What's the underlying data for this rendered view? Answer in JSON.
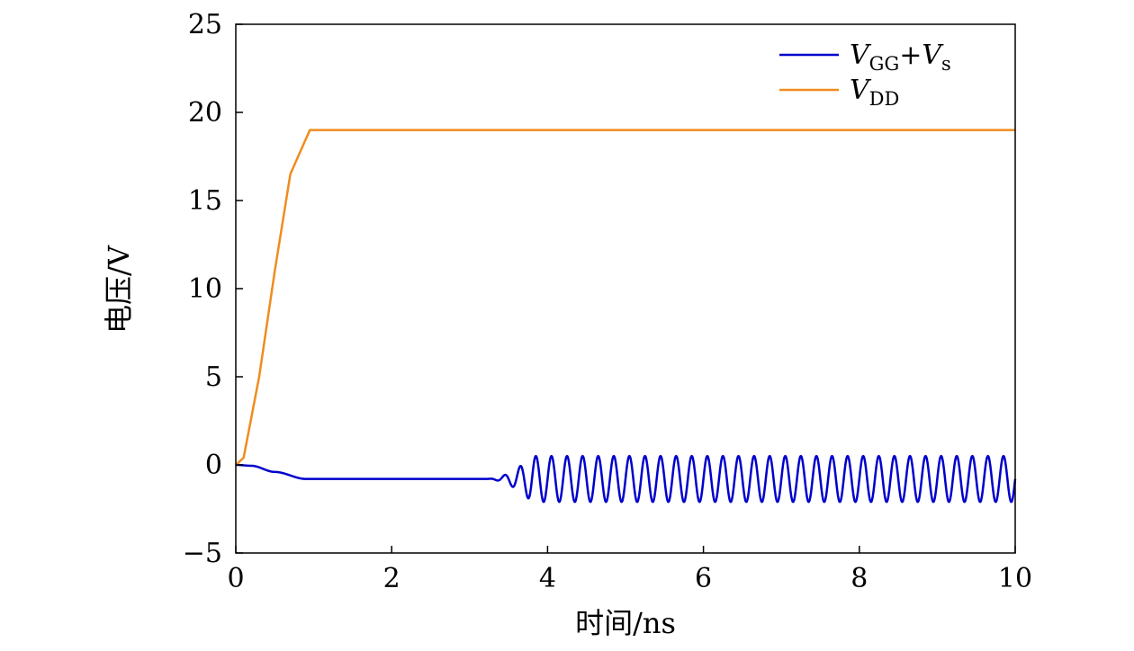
{
  "chart_data": {
    "type": "line",
    "title": "",
    "xlabel": "时间/ns",
    "ylabel": "电压/V",
    "xlim": [
      0,
      10
    ],
    "ylim": [
      -5,
      25
    ],
    "xticks": [
      0,
      2,
      4,
      6,
      8,
      10
    ],
    "yticks": [
      -5,
      0,
      5,
      10,
      15,
      20,
      25
    ],
    "ytick_labels": [
      "−5",
      "0",
      "5",
      "10",
      "15",
      "20",
      "25"
    ],
    "grid": false,
    "legend_position": "top-right",
    "series": [
      {
        "name": "VGG+Vs",
        "legend": {
          "main": "V",
          "sub1": "GG",
          "plus": "+",
          "main2": "V",
          "sub2": "s"
        },
        "color": "#0000cc",
        "description": "starts at 0 V, dips to about -0.8 V by 1 ns, flat until about 3.2 ns, then oscillates with growing amplitude settling between about -2.1 V and 0.5 V with period about 0.2 ns",
        "key_points": [
          [
            0,
            0
          ],
          [
            0.2,
            -0.05
          ],
          [
            0.5,
            -0.4
          ],
          [
            0.9,
            -0.8
          ],
          [
            3.2,
            -0.8
          ],
          [
            3.8,
            -0.8
          ],
          [
            10,
            -0.8
          ]
        ],
        "oscillation": {
          "start": 3.2,
          "full_amplitude_at": 3.8,
          "center": -0.8,
          "amplitude": 1.3,
          "period": 0.2
        }
      },
      {
        "name": "VDD",
        "legend": {
          "main": "V",
          "sub1": "DD"
        },
        "color": "#f08c1e",
        "description": "rises from 0 V at 0 ns to 19 V at about 0.95 ns, then stays flat at 19 V",
        "key_points": [
          [
            0,
            0
          ],
          [
            0.1,
            0.4
          ],
          [
            0.3,
            5
          ],
          [
            0.5,
            11
          ],
          [
            0.7,
            16.5
          ],
          [
            0.95,
            19
          ],
          [
            10,
            19
          ]
        ]
      }
    ]
  }
}
